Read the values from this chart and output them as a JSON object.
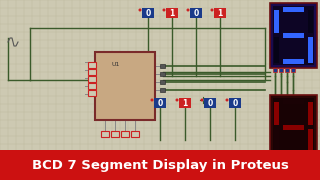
{
  "title": "BCD 7 Segment Display in Proteus",
  "title_bg": "#cc1111",
  "title_color": "#ffffff",
  "title_fontsize": 9.5,
  "bg_color": "#ceca b4",
  "grid_color": "#bcb89e",
  "seg_border_top": "#6b1010",
  "seg_bg_top": "#1a0a4e",
  "seg_inner_top": "#0d0525",
  "seg_on": "#2255ff",
  "seg_off": "#060318",
  "seg_border_bot": "#6b1010",
  "seg_bg_bot": "#3a0808",
  "seg_inner_bot": "#1a0305",
  "seg_on_bot": "#aa0000",
  "seg_off_bot": "#200205",
  "ic_border": "#7a2a2a",
  "ic_fill": "#c8a882",
  "wire_color": "#3a5a2a",
  "wire_color2": "#2a4a1a",
  "label0_bg": "#1a3a8a",
  "label1_bg": "#cc2222",
  "label_text": "#ffffff",
  "pin_box_border": "#cc2222",
  "bg_hex": "#cdc9b2"
}
